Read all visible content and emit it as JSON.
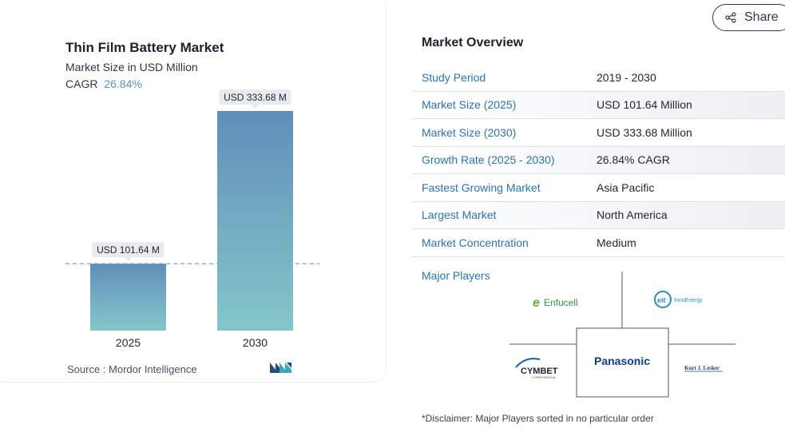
{
  "chart_card": {
    "title": "Thin Film Battery Market",
    "subtitle": "Market Size in USD Million",
    "cagr_label": "CAGR",
    "cagr_value": "26.84%",
    "source": "Source :  Mordor Intelligence"
  },
  "chart_data": {
    "type": "bar",
    "categories": [
      "2025",
      "2030"
    ],
    "values": [
      101.64,
      333.68
    ],
    "data_labels": [
      "USD 101.64 M",
      "USD 333.68 M"
    ],
    "title": "Thin Film Battery Market",
    "subtitle": "Market Size in USD Million",
    "xlabel": "",
    "ylabel": "",
    "ylim": [
      0,
      333.68
    ],
    "reference_line": 101.64,
    "colors": {
      "bar_top": "#5f8fba",
      "bar_bottom": "#84c7c9",
      "dash": "#7fa9c6"
    }
  },
  "share": {
    "label": "Share"
  },
  "overview": {
    "title": "Market Overview",
    "rows": [
      {
        "key": "Study Period",
        "value": "2019 - 2030"
      },
      {
        "key": "Market Size (2025)",
        "value": "USD 101.64 Million"
      },
      {
        "key": "Market Size (2030)",
        "value": "USD 333.68 Million"
      },
      {
        "key": "Growth Rate (2025 - 2030)",
        "value": "26.84% CAGR"
      },
      {
        "key": "Fastest Growing Market",
        "value": "Asia Pacific"
      },
      {
        "key": "Largest Market",
        "value": "North America"
      },
      {
        "key": "Market Concentration",
        "value": "Medium"
      }
    ],
    "players_label": "Major Players",
    "players": {
      "enfucell": "Enfucell",
      "innoenergy_mark": "eit",
      "innoenergy": "InnoEnergy",
      "panasonic": "Panasonic",
      "cymbet": "CYMBET",
      "cymbet_sub": "CORPORATION",
      "lesker": "Kurt J. Lesker"
    },
    "disclaimer": "*Disclaimer: Major Players sorted in no particular order"
  },
  "brand": {
    "logo_icon": "mordor-intelligence-logo"
  }
}
